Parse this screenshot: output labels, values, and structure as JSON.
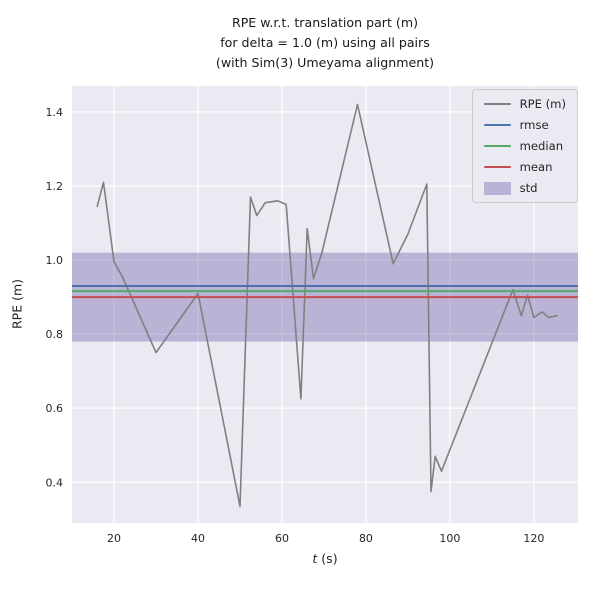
{
  "title": {
    "line1": "RPE w.r.t. translation part (m)",
    "line2": "for delta = 1.0 (m) using all pairs",
    "line3": "(with Sim(3) Umeyama alignment)"
  },
  "axes": {
    "xlabel_var": "t",
    "xlabel_rest": " (s)",
    "ylabel": "RPE (m)"
  },
  "colors": {
    "figure_bg": "#ffffff",
    "axes_bg": "#eaeaf2",
    "grid": "#ffffff",
    "text": "#262626",
    "rpe": "#808080",
    "rmse": "#4c72b0",
    "median": "#55a868",
    "mean": "#c44e52",
    "std": "#8172b2",
    "std_band_rgba": "rgba(129,114,178,0.45)"
  },
  "chart_data": {
    "type": "line",
    "title": "RPE w.r.t. translation part (m) for delta = 1.0 (m) using all pairs (with Sim(3) Umeyama alignment)",
    "xlabel": "t (s)",
    "ylabel": "RPE (m)",
    "xlim": [
      10,
      130.5
    ],
    "ylim": [
      0.29,
      1.47
    ],
    "xticks": [
      20,
      40,
      60,
      80,
      100,
      120
    ],
    "xtick_labels": [
      "20",
      "40",
      "60",
      "80",
      "100",
      "120"
    ],
    "yticks": [
      0.4,
      0.6,
      0.8,
      1.0,
      1.2,
      1.4
    ],
    "ytick_labels": [
      "0.4",
      "0.6",
      "0.8",
      "1.0",
      "1.2",
      "1.4"
    ],
    "grid": true,
    "legend_position": "upper right",
    "series": {
      "name": "RPE (m)",
      "x": [
        16,
        17.5,
        20,
        22,
        30,
        40,
        50,
        52.5,
        54,
        56,
        59,
        61,
        64.5,
        66,
        67.5,
        69.5,
        78,
        86.5,
        90,
        94.5,
        95.5,
        96.5,
        98,
        115,
        117,
        118.5,
        120,
        122,
        123.5,
        125.5
      ],
      "y": [
        1.145,
        1.21,
        0.995,
        0.955,
        0.75,
        0.91,
        0.335,
        1.17,
        1.12,
        1.155,
        1.16,
        1.15,
        0.625,
        1.085,
        0.95,
        1.02,
        1.42,
        0.99,
        1.07,
        1.205,
        0.375,
        0.47,
        0.43,
        0.92,
        0.85,
        0.905,
        0.845,
        0.86,
        0.845,
        0.85
      ]
    },
    "stats": {
      "rmse": 0.93,
      "median": 0.916,
      "mean": 0.9,
      "std": 0.12,
      "std_band": [
        0.78,
        1.02
      ]
    },
    "legend": [
      {
        "label": "RPE (m)",
        "key": "rpe",
        "type": "line"
      },
      {
        "label": "rmse",
        "key": "rmse",
        "type": "line"
      },
      {
        "label": "median",
        "key": "median",
        "type": "line"
      },
      {
        "label": "mean",
        "key": "mean",
        "type": "line"
      },
      {
        "label": "std",
        "key": "std",
        "type": "patch"
      }
    ]
  }
}
